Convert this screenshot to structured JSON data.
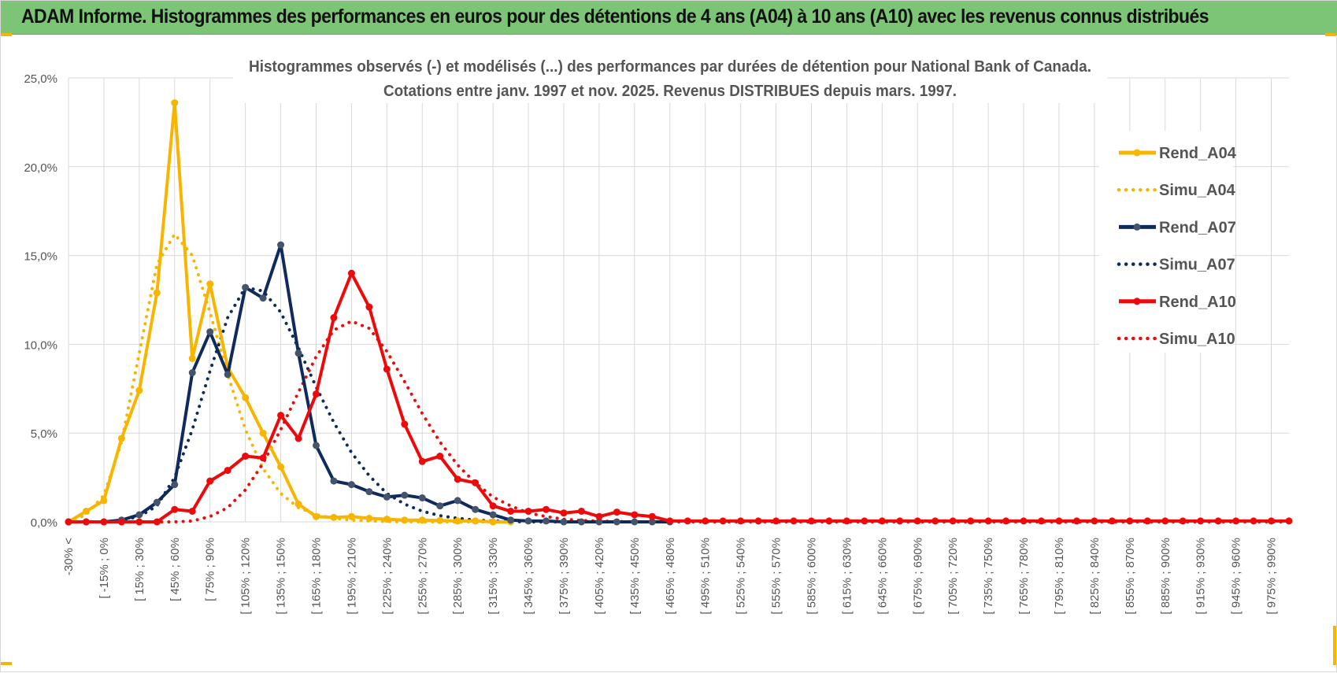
{
  "header": {
    "title": "ADAM Informe. Histogrammes des performances en euros pour des détentions de 4 ans (A04) à 10 ans (A10) avec les revenus connus distribués"
  },
  "colors": {
    "banner": "#7cc577",
    "a04": "#f7b500",
    "a07": "#0f2a5c",
    "a10": "#ee0a0a",
    "grid": "#d9d9d9"
  },
  "chart_data": {
    "type": "line",
    "title_line1": "Histogrammes observés (-) et modélisés (...) des performances par durées de détention pour National Bank of Canada.",
    "title_line2": "Cotations entre janv. 1997 et nov. 2025. Revenus DISTRIBUES depuis mars. 1997.",
    "ylim": [
      0,
      25
    ],
    "y_ticks": [
      "0,0%",
      "5,0%",
      "10,0%",
      "15,0%",
      "20,0%",
      "25,0%"
    ],
    "y_tick_values": [
      0,
      5,
      10,
      15,
      20,
      25
    ],
    "grid": true,
    "legend_position": "right",
    "x_tick_labels": [
      "-30% <",
      "[ -15% ; 0%",
      "[ 15% ; 30%",
      "[ 45% ; 60%",
      "[ 75% ; 90%",
      "[ 105% ; 120%",
      "[ 135% ; 150%",
      "[ 165% ; 180%",
      "[ 195% ; 210%",
      "[ 225% ; 240%",
      "[ 255% ; 270%",
      "[ 285% ; 300%",
      "[ 315% ; 330%",
      "[ 345% ; 360%",
      "[ 375% ; 390%",
      "[ 405% ; 420%",
      "[ 435% ; 450%",
      "[ 465% ; 480%",
      "[ 495% ; 510%",
      "[ 525% ; 540%",
      "[ 555% ; 570%",
      "[ 585% ; 600%",
      "[ 615% ; 630%",
      "[ 645% ; 660%",
      "[ 675% ; 690%",
      "[ 705% ; 720%",
      "[ 735% ; 750%",
      "[ 765% ; 780%",
      "[ 795% ; 810%",
      "[ 825% ; 840%",
      "[ 855% ; 870%",
      "[ 885% ; 900%",
      "[ 915% ; 930%",
      "[ 945% ; 960%",
      "[ 975% ; 990%"
    ],
    "n_categories": 70,
    "series": [
      {
        "name": "Rend_A04",
        "style": "solid",
        "color": "#f7b500",
        "values": [
          0,
          0.6,
          1.2,
          4.7,
          7.4,
          12.9,
          23.6,
          9.2,
          13.4,
          8.7,
          7.0,
          5.0,
          3.1,
          1.0,
          0.3,
          0.25,
          0.3,
          0.2,
          0.15,
          0.1,
          0.1,
          0.08,
          0.05,
          0.05,
          0,
          0
        ]
      },
      {
        "name": "Simu_A04",
        "style": "dotted",
        "color": "#f7b500",
        "values": [
          0,
          0.4,
          1.5,
          4.5,
          9.5,
          14.5,
          16.2,
          15.0,
          11.8,
          8.3,
          5.2,
          3.0,
          1.6,
          0.8,
          0.4,
          0.2,
          0.1,
          0.05,
          0.02,
          0.01,
          0,
          0,
          0,
          0,
          0
        ]
      },
      {
        "name": "Rend_A07",
        "style": "solid",
        "color": "#0f2a5c",
        "values": [
          0,
          0,
          0,
          0.1,
          0.4,
          1.1,
          2.1,
          8.4,
          10.7,
          8.3,
          13.2,
          12.6,
          15.6,
          9.5,
          4.3,
          2.3,
          2.1,
          1.7,
          1.4,
          1.5,
          1.35,
          0.9,
          1.2,
          0.7,
          0.4,
          0.1,
          0.05,
          0.05,
          0,
          0,
          0,
          0,
          0,
          0,
          0
        ]
      },
      {
        "name": "Simu_A07",
        "style": "dotted",
        "color": "#0f2a5c",
        "values": [
          0,
          0,
          0,
          0.1,
          0.3,
          0.9,
          2.5,
          5.2,
          8.5,
          11.5,
          13.2,
          13.0,
          11.8,
          9.8,
          7.6,
          5.6,
          3.9,
          2.6,
          1.6,
          1.0,
          0.6,
          0.35,
          0.2,
          0.1,
          0.05,
          0.02,
          0,
          0,
          0,
          0,
          0,
          0
        ]
      },
      {
        "name": "Rend_A10",
        "style": "solid",
        "color": "#ee0a0a",
        "values": [
          0,
          0,
          0,
          0,
          0,
          0,
          0.7,
          0.6,
          2.3,
          2.9,
          3.7,
          3.6,
          6.0,
          4.7,
          7.2,
          11.5,
          14.0,
          12.1,
          8.6,
          5.5,
          3.4,
          3.7,
          2.4,
          2.2,
          0.9,
          0.6,
          0.6,
          0.7,
          0.5,
          0.6,
          0.3,
          0.55,
          0.4,
          0.3,
          0.05,
          0.05,
          0.05,
          0.05,
          0.05,
          0.05,
          0.05,
          0.05,
          0.05,
          0.05,
          0.05,
          0.05,
          0.05,
          0.05,
          0.05,
          0.05,
          0.05,
          0.05,
          0.05,
          0.05,
          0.05,
          0.05,
          0.05,
          0.05,
          0.05,
          0.05,
          0.05,
          0.05,
          0.05,
          0.05,
          0.05,
          0.05,
          0.05,
          0.05,
          0.05,
          0.05
        ]
      },
      {
        "name": "Simu_A10",
        "style": "dotted",
        "color": "#ee0a0a",
        "values": [
          0,
          0,
          0,
          0,
          0,
          0,
          0,
          0.05,
          0.3,
          0.8,
          1.8,
          3.3,
          5.2,
          7.3,
          9.3,
          10.8,
          11.3,
          10.9,
          9.6,
          7.9,
          6.1,
          4.5,
          3.2,
          2.2,
          1.4,
          0.9,
          0.5,
          0.3,
          0.15,
          0.08,
          0.04,
          0.02,
          0.01,
          0,
          0,
          0,
          0,
          0,
          0,
          0,
          0,
          0,
          0,
          0,
          0,
          0,
          0,
          0,
          0,
          0,
          0,
          0,
          0,
          0,
          0,
          0,
          0,
          0,
          0,
          0,
          0,
          0,
          0,
          0,
          0,
          0,
          0,
          0,
          0,
          0
        ]
      }
    ]
  }
}
